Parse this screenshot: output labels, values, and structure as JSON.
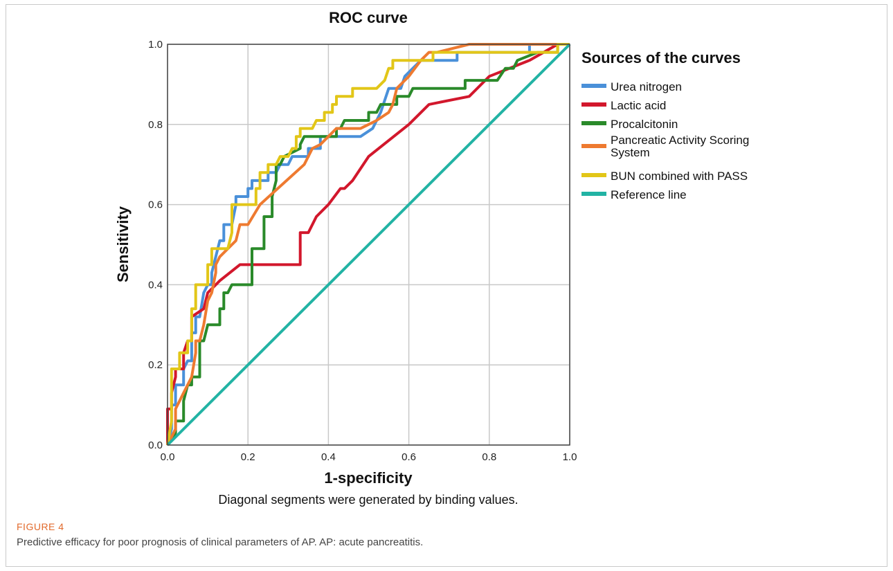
{
  "caption": {
    "label": "FIGURE 4",
    "text": "Predictive efficacy for poor prognosis of clinical parameters of AP. AP: acute pancreatitis."
  },
  "chart_data": {
    "type": "line",
    "title": "ROC curve",
    "xlabel": "1-specificity",
    "ylabel": "Sensitivity",
    "footnote": "Diagonal segments were generated by binding values.",
    "xlim": [
      0,
      1
    ],
    "ylim": [
      0,
      1
    ],
    "xticks": [
      "0.0",
      "0.2",
      "0.4",
      "0.6",
      "0.8",
      "1.0"
    ],
    "yticks": [
      "0.0",
      "0.2",
      "0.4",
      "0.6",
      "0.8",
      "1.0"
    ],
    "grid": true,
    "legend_title": "Sources of the curves",
    "legend_position": "right",
    "series": [
      {
        "name": "Urea nitrogen",
        "color": "#4a90d9",
        "points": [
          [
            0,
            0
          ],
          [
            0.01,
            0.04
          ],
          [
            0.01,
            0.1
          ],
          [
            0.02,
            0.1
          ],
          [
            0.02,
            0.15
          ],
          [
            0.04,
            0.15
          ],
          [
            0.04,
            0.19
          ],
          [
            0.05,
            0.21
          ],
          [
            0.06,
            0.21
          ],
          [
            0.06,
            0.28
          ],
          [
            0.07,
            0.28
          ],
          [
            0.07,
            0.32
          ],
          [
            0.08,
            0.32
          ],
          [
            0.09,
            0.38
          ],
          [
            0.1,
            0.4
          ],
          [
            0.11,
            0.4
          ],
          [
            0.11,
            0.43
          ],
          [
            0.12,
            0.47
          ],
          [
            0.13,
            0.51
          ],
          [
            0.14,
            0.51
          ],
          [
            0.14,
            0.55
          ],
          [
            0.16,
            0.55
          ],
          [
            0.17,
            0.6
          ],
          [
            0.17,
            0.62
          ],
          [
            0.2,
            0.62
          ],
          [
            0.2,
            0.64
          ],
          [
            0.21,
            0.64
          ],
          [
            0.21,
            0.66
          ],
          [
            0.25,
            0.66
          ],
          [
            0.25,
            0.68
          ],
          [
            0.27,
            0.68
          ],
          [
            0.28,
            0.7
          ],
          [
            0.3,
            0.7
          ],
          [
            0.31,
            0.72
          ],
          [
            0.35,
            0.72
          ],
          [
            0.35,
            0.74
          ],
          [
            0.38,
            0.74
          ],
          [
            0.38,
            0.77
          ],
          [
            0.48,
            0.77
          ],
          [
            0.51,
            0.79
          ],
          [
            0.53,
            0.83
          ],
          [
            0.55,
            0.89
          ],
          [
            0.58,
            0.89
          ],
          [
            0.59,
            0.92
          ],
          [
            0.61,
            0.94
          ],
          [
            0.63,
            0.96
          ],
          [
            0.72,
            0.96
          ],
          [
            0.72,
            0.98
          ],
          [
            0.9,
            0.98
          ],
          [
            0.9,
            1.0
          ],
          [
            1.0,
            1.0
          ]
        ]
      },
      {
        "name": "Lactic acid",
        "color": "#d2172c",
        "points": [
          [
            0,
            0
          ],
          [
            0,
            0.09
          ],
          [
            0.01,
            0.09
          ],
          [
            0.01,
            0.13
          ],
          [
            0.02,
            0.17
          ],
          [
            0.02,
            0.19
          ],
          [
            0.04,
            0.19
          ],
          [
            0.04,
            0.23
          ],
          [
            0.05,
            0.26
          ],
          [
            0.06,
            0.26
          ],
          [
            0.06,
            0.32
          ],
          [
            0.09,
            0.34
          ],
          [
            0.1,
            0.38
          ],
          [
            0.12,
            0.4
          ],
          [
            0.13,
            0.41
          ],
          [
            0.18,
            0.45
          ],
          [
            0.33,
            0.45
          ],
          [
            0.33,
            0.53
          ],
          [
            0.35,
            0.53
          ],
          [
            0.37,
            0.57
          ],
          [
            0.4,
            0.6
          ],
          [
            0.43,
            0.64
          ],
          [
            0.44,
            0.64
          ],
          [
            0.46,
            0.66
          ],
          [
            0.48,
            0.69
          ],
          [
            0.5,
            0.72
          ],
          [
            0.6,
            0.8
          ],
          [
            0.65,
            0.85
          ],
          [
            0.75,
            0.87
          ],
          [
            0.8,
            0.92
          ],
          [
            0.9,
            0.96
          ],
          [
            0.97,
            1.0
          ]
        ]
      },
      {
        "name": "Procalcitonin",
        "color": "#2a8a2a",
        "points": [
          [
            0,
            0
          ],
          [
            0.02,
            0.03
          ],
          [
            0.02,
            0.06
          ],
          [
            0.04,
            0.06
          ],
          [
            0.04,
            0.11
          ],
          [
            0.05,
            0.15
          ],
          [
            0.06,
            0.15
          ],
          [
            0.06,
            0.17
          ],
          [
            0.08,
            0.17
          ],
          [
            0.08,
            0.26
          ],
          [
            0.09,
            0.26
          ],
          [
            0.1,
            0.3
          ],
          [
            0.13,
            0.3
          ],
          [
            0.13,
            0.34
          ],
          [
            0.14,
            0.34
          ],
          [
            0.14,
            0.38
          ],
          [
            0.15,
            0.38
          ],
          [
            0.16,
            0.4
          ],
          [
            0.21,
            0.4
          ],
          [
            0.21,
            0.49
          ],
          [
            0.24,
            0.49
          ],
          [
            0.24,
            0.57
          ],
          [
            0.26,
            0.57
          ],
          [
            0.26,
            0.62
          ],
          [
            0.27,
            0.66
          ],
          [
            0.27,
            0.7
          ],
          [
            0.28,
            0.7
          ],
          [
            0.29,
            0.72
          ],
          [
            0.33,
            0.74
          ],
          [
            0.33,
            0.75
          ],
          [
            0.34,
            0.77
          ],
          [
            0.42,
            0.77
          ],
          [
            0.42,
            0.79
          ],
          [
            0.43,
            0.79
          ],
          [
            0.44,
            0.81
          ],
          [
            0.5,
            0.81
          ],
          [
            0.5,
            0.83
          ],
          [
            0.52,
            0.83
          ],
          [
            0.53,
            0.85
          ],
          [
            0.57,
            0.85
          ],
          [
            0.57,
            0.87
          ],
          [
            0.6,
            0.87
          ],
          [
            0.61,
            0.89
          ],
          [
            0.74,
            0.89
          ],
          [
            0.74,
            0.91
          ],
          [
            0.82,
            0.91
          ],
          [
            0.84,
            0.94
          ],
          [
            0.86,
            0.94
          ],
          [
            0.87,
            0.96
          ],
          [
            0.92,
            0.98
          ],
          [
            0.97,
            0.98
          ],
          [
            0.97,
            1.0
          ]
        ]
      },
      {
        "name": " Pancreatic Activity Scoring System",
        "color": "#ee7a30",
        "points": [
          [
            0,
            0
          ],
          [
            0.02,
            0.04
          ],
          [
            0.02,
            0.09
          ],
          [
            0.03,
            0.11
          ],
          [
            0.04,
            0.13
          ],
          [
            0.06,
            0.17
          ],
          [
            0.07,
            0.23
          ],
          [
            0.07,
            0.26
          ],
          [
            0.08,
            0.26
          ],
          [
            0.09,
            0.3
          ],
          [
            0.1,
            0.36
          ],
          [
            0.11,
            0.38
          ],
          [
            0.12,
            0.43
          ],
          [
            0.12,
            0.45
          ],
          [
            0.13,
            0.47
          ],
          [
            0.17,
            0.51
          ],
          [
            0.18,
            0.55
          ],
          [
            0.2,
            0.55
          ],
          [
            0.23,
            0.6
          ],
          [
            0.34,
            0.7
          ],
          [
            0.36,
            0.74
          ],
          [
            0.38,
            0.75
          ],
          [
            0.4,
            0.77
          ],
          [
            0.42,
            0.79
          ],
          [
            0.48,
            0.79
          ],
          [
            0.5,
            0.8
          ],
          [
            0.52,
            0.81
          ],
          [
            0.55,
            0.83
          ],
          [
            0.56,
            0.85
          ],
          [
            0.57,
            0.89
          ],
          [
            0.6,
            0.92
          ],
          [
            0.63,
            0.96
          ],
          [
            0.65,
            0.98
          ],
          [
            0.67,
            0.98
          ],
          [
            0.75,
            1.0
          ],
          [
            1.0,
            1.0
          ]
        ]
      },
      {
        "name": "BUN combined with PASS",
        "color": "#e2c618",
        "points": [
          [
            0,
            0
          ],
          [
            0.01,
            0.06
          ],
          [
            0.01,
            0.19
          ],
          [
            0.03,
            0.19
          ],
          [
            0.03,
            0.23
          ],
          [
            0.05,
            0.23
          ],
          [
            0.05,
            0.26
          ],
          [
            0.06,
            0.26
          ],
          [
            0.06,
            0.34
          ],
          [
            0.07,
            0.34
          ],
          [
            0.07,
            0.4
          ],
          [
            0.1,
            0.4
          ],
          [
            0.1,
            0.45
          ],
          [
            0.11,
            0.45
          ],
          [
            0.11,
            0.49
          ],
          [
            0.15,
            0.49
          ],
          [
            0.16,
            0.53
          ],
          [
            0.16,
            0.6
          ],
          [
            0.22,
            0.6
          ],
          [
            0.22,
            0.64
          ],
          [
            0.23,
            0.64
          ],
          [
            0.23,
            0.68
          ],
          [
            0.25,
            0.68
          ],
          [
            0.25,
            0.7
          ],
          [
            0.27,
            0.7
          ],
          [
            0.28,
            0.72
          ],
          [
            0.3,
            0.72
          ],
          [
            0.31,
            0.74
          ],
          [
            0.32,
            0.74
          ],
          [
            0.32,
            0.77
          ],
          [
            0.33,
            0.77
          ],
          [
            0.33,
            0.79
          ],
          [
            0.36,
            0.79
          ],
          [
            0.37,
            0.81
          ],
          [
            0.39,
            0.81
          ],
          [
            0.39,
            0.83
          ],
          [
            0.41,
            0.83
          ],
          [
            0.41,
            0.85
          ],
          [
            0.42,
            0.85
          ],
          [
            0.42,
            0.87
          ],
          [
            0.46,
            0.87
          ],
          [
            0.46,
            0.89
          ],
          [
            0.52,
            0.89
          ],
          [
            0.54,
            0.91
          ],
          [
            0.55,
            0.94
          ],
          [
            0.56,
            0.94
          ],
          [
            0.56,
            0.96
          ],
          [
            0.66,
            0.96
          ],
          [
            0.66,
            0.98
          ],
          [
            0.97,
            0.98
          ],
          [
            0.97,
            1.0
          ],
          [
            1.0,
            1.0
          ]
        ]
      },
      {
        "name": "Reference line",
        "color": "#22b3a4",
        "points": [
          [
            0,
            0
          ],
          [
            1,
            1
          ]
        ]
      }
    ]
  }
}
